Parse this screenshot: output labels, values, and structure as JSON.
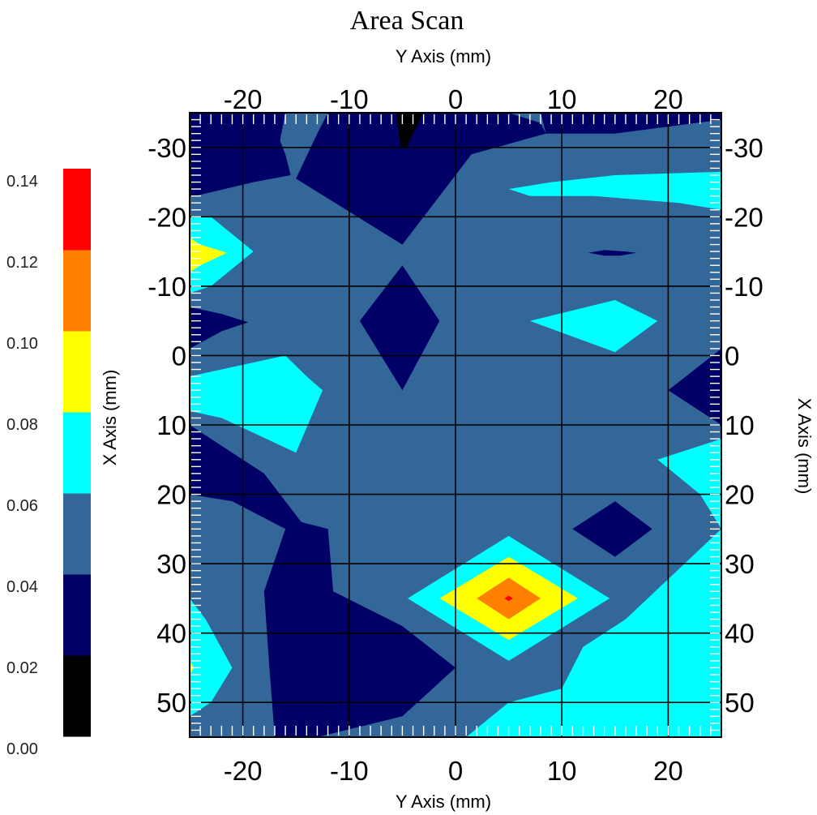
{
  "chart_data": {
    "type": "heatmap",
    "subtype": "filled-contour",
    "title": "Area Scan",
    "x_axis": {
      "label": "Y Axis (mm)",
      "ticks": [
        -20,
        -10,
        0,
        10,
        20
      ],
      "range": [
        -25,
        25
      ],
      "shown": [
        "top",
        "bottom"
      ]
    },
    "y_axis": {
      "label": "X Axis (mm)",
      "ticks": [
        -30,
        -20,
        -10,
        0,
        10,
        20,
        30,
        40,
        50
      ],
      "range": [
        -35,
        55
      ],
      "direction": "down",
      "shown": [
        "left",
        "right"
      ]
    },
    "grid": true,
    "colorbar": {
      "placement": "left",
      "labels": [
        "0.00",
        "0.02",
        "0.04",
        "0.06",
        "0.08",
        "0.10",
        "0.12",
        "0.14"
      ],
      "levels": [
        0.0,
        0.02,
        0.04,
        0.06,
        0.08,
        0.1,
        0.12,
        0.14
      ],
      "colors": [
        "#000000",
        "#000066",
        "#336699",
        "#00ffff",
        "#ffff00",
        "#ff8000",
        "#ff0000"
      ]
    },
    "background_level": 0.05,
    "regions": [
      {
        "name": "top-black",
        "level": 0.01,
        "color": "#000000",
        "points": [
          [
            -5.6,
            -35
          ],
          [
            -3,
            -35
          ],
          [
            -4.6,
            -30
          ],
          [
            -5.2,
            -30
          ]
        ]
      },
      {
        "name": "top-left-navy",
        "level": 0.03,
        "color": "#000066",
        "points": [
          [
            -25,
            -35
          ],
          [
            -16,
            -35
          ],
          [
            -16.5,
            -31
          ],
          [
            -16,
            -29
          ],
          [
            -15.5,
            -26
          ],
          [
            -19,
            -25
          ],
          [
            -24.5,
            -23
          ],
          [
            -25,
            -23
          ]
        ]
      },
      {
        "name": "top-center-navy",
        "level": 0.03,
        "color": "#000066",
        "points": [
          [
            -12,
            -35
          ],
          [
            -5.6,
            -35
          ],
          [
            -5.2,
            -30
          ],
          [
            -4.6,
            -30
          ],
          [
            -3,
            -35
          ],
          [
            5,
            -35
          ],
          [
            8,
            -33.5
          ],
          [
            8.5,
            -32
          ],
          [
            1.5,
            -29
          ],
          [
            -1,
            -24
          ],
          [
            -5,
            -16
          ],
          [
            -15,
            -25.5
          ],
          [
            -13,
            -32
          ]
        ]
      },
      {
        "name": "top-right-navy",
        "level": 0.03,
        "color": "#000066",
        "points": [
          [
            8,
            -35
          ],
          [
            25,
            -35
          ],
          [
            25,
            -34
          ],
          [
            20,
            -33
          ],
          [
            15,
            -32
          ],
          [
            8.5,
            -32
          ]
        ]
      },
      {
        "name": "top-right-cyan",
        "level": 0.07,
        "color": "#00ffff",
        "points": [
          [
            5,
            -24
          ],
          [
            9,
            -25
          ],
          [
            15,
            -26
          ],
          [
            25,
            -26.5
          ],
          [
            25,
            -21
          ],
          [
            21,
            -22
          ],
          [
            13,
            -23
          ],
          [
            7,
            -23
          ]
        ]
      },
      {
        "name": "right-sliver",
        "level": 0.03,
        "color": "#000066",
        "points": [
          [
            12.5,
            -14.8
          ],
          [
            14,
            -15.2
          ],
          [
            16,
            -15
          ],
          [
            17,
            -14.8
          ],
          [
            15.5,
            -14.4
          ],
          [
            14,
            -14.4
          ]
        ]
      },
      {
        "name": "left-cyan",
        "level": 0.07,
        "color": "#00ffff",
        "points": [
          [
            -25,
            -20
          ],
          [
            -23,
            -20
          ],
          [
            -19,
            -15
          ],
          [
            -23,
            -10
          ],
          [
            -25,
            -9
          ]
        ]
      },
      {
        "name": "left-yellow",
        "level": 0.09,
        "color": "#ffff00",
        "points": [
          [
            -25,
            -17
          ],
          [
            -24,
            -16
          ],
          [
            -21.5,
            -14.8
          ],
          [
            -24,
            -13
          ],
          [
            -25,
            -12
          ]
        ]
      },
      {
        "name": "center-diamond-navy",
        "level": 0.03,
        "color": "#000066",
        "points": [
          [
            -5,
            -13
          ],
          [
            -1.5,
            -5
          ],
          [
            -5,
            5
          ],
          [
            -9,
            -5
          ]
        ]
      },
      {
        "name": "left-navy-wedge",
        "level": 0.03,
        "color": "#000066",
        "points": [
          [
            -25,
            -7
          ],
          [
            -22,
            -6
          ],
          [
            -19.5,
            -4.8
          ],
          [
            -22,
            -3.5
          ],
          [
            -25,
            -1
          ]
        ]
      },
      {
        "name": "right-mid-cyan",
        "level": 0.07,
        "color": "#00ffff",
        "points": [
          [
            7,
            -5
          ],
          [
            15,
            -8
          ],
          [
            19,
            -5
          ],
          [
            15,
            -0.5
          ]
        ]
      },
      {
        "name": "right-navy-wedge",
        "level": 0.03,
        "color": "#000066",
        "points": [
          [
            25,
            -1
          ],
          [
            25,
            10
          ],
          [
            20,
            5
          ]
        ]
      },
      {
        "name": "left-cyan-2",
        "level": 0.07,
        "color": "#00ffff",
        "points": [
          [
            -25,
            3
          ],
          [
            -16,
            0
          ],
          [
            -14,
            3
          ],
          [
            -12.5,
            5
          ],
          [
            -15,
            14
          ],
          [
            -22,
            9
          ],
          [
            -25,
            8
          ]
        ]
      },
      {
        "name": "right-cyan-2",
        "level": 0.07,
        "color": "#00ffff",
        "points": [
          [
            25,
            12
          ],
          [
            25,
            25
          ],
          [
            23,
            20
          ],
          [
            19,
            15
          ]
        ]
      },
      {
        "name": "left-bottom-navy",
        "level": 0.03,
        "color": "#000066",
        "points": [
          [
            -25,
            10
          ],
          [
            -22,
            13
          ],
          [
            -18,
            17
          ],
          [
            -14.5,
            24
          ],
          [
            -16,
            25
          ],
          [
            -21,
            21
          ],
          [
            -25,
            20
          ]
        ]
      },
      {
        "name": "right-small-diamond",
        "level": 0.03,
        "color": "#000066",
        "points": [
          [
            11,
            25
          ],
          [
            15,
            21
          ],
          [
            18.5,
            25
          ],
          [
            15,
            29
          ]
        ]
      },
      {
        "name": "bottom-left-navy",
        "level": 0.03,
        "color": "#000066",
        "points": [
          [
            -16,
            25
          ],
          [
            -14.5,
            24
          ],
          [
            -12,
            25
          ],
          [
            -11.5,
            34
          ],
          [
            -5,
            39
          ],
          [
            0,
            45
          ],
          [
            -5,
            52
          ],
          [
            -13,
            55
          ],
          [
            -17,
            55
          ],
          [
            -17.5,
            45
          ],
          [
            -18,
            34
          ]
        ]
      },
      {
        "name": "bottom-right-cyan",
        "level": 0.07,
        "color": "#00ffff",
        "points": [
          [
            25,
            25
          ],
          [
            25,
            55
          ],
          [
            1,
            55
          ],
          [
            5,
            50
          ],
          [
            10,
            48
          ],
          [
            12,
            42
          ],
          [
            16,
            38
          ]
        ]
      },
      {
        "name": "bottom-left-cyan",
        "level": 0.07,
        "color": "#00ffff",
        "points": [
          [
            -25,
            35
          ],
          [
            -23.5,
            38
          ],
          [
            -21,
            45
          ],
          [
            -23,
            50
          ],
          [
            -25,
            52
          ]
        ]
      },
      {
        "name": "bottom-left-yellow",
        "level": 0.09,
        "color": "#ffff00",
        "points": [
          [
            -25,
            44
          ],
          [
            -24.6,
            45
          ],
          [
            -25,
            46
          ]
        ]
      },
      {
        "name": "hotspot-cyan",
        "level": 0.07,
        "color": "#00ffff",
        "points": [
          [
            -4.5,
            35
          ],
          [
            5,
            26
          ],
          [
            14.5,
            35
          ],
          [
            5,
            44
          ]
        ]
      },
      {
        "name": "hotspot-yellow",
        "level": 0.09,
        "color": "#ffff00",
        "points": [
          [
            -1.5,
            35
          ],
          [
            5,
            29
          ],
          [
            11.5,
            35
          ],
          [
            5,
            41
          ]
        ]
      },
      {
        "name": "hotspot-orange",
        "level": 0.11,
        "color": "#ff8000",
        "points": [
          [
            2,
            35
          ],
          [
            5,
            32
          ],
          [
            8,
            35
          ],
          [
            5,
            38
          ]
        ]
      },
      {
        "name": "hotspot-red",
        "level": 0.13,
        "color": "#ff0000",
        "points": [
          [
            4.6,
            35
          ],
          [
            5,
            34.6
          ],
          [
            5.4,
            35
          ],
          [
            5,
            35.4
          ]
        ]
      }
    ]
  }
}
